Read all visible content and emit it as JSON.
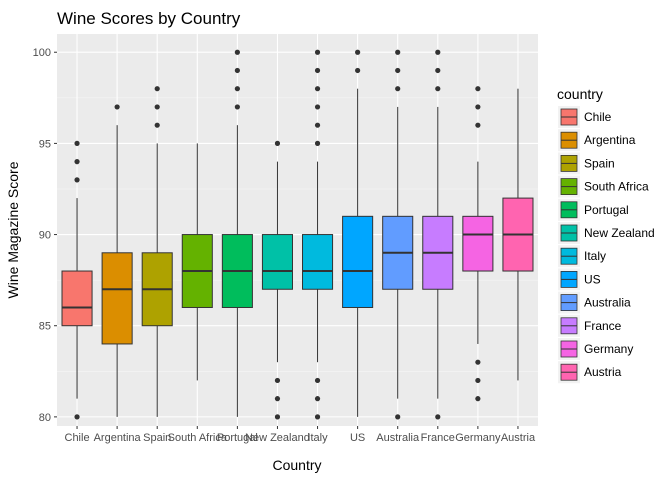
{
  "chart_data": {
    "type": "boxplot",
    "title": "Wine Scores by Country",
    "xlabel": "Country",
    "ylabel": "Wine Magazine Score",
    "ylim": [
      79.5,
      101
    ],
    "yticks": [
      80,
      85,
      90,
      95,
      100
    ],
    "grid": true,
    "legend_title": "country",
    "legend_position": "right",
    "boxes": [
      {
        "name": "Chile",
        "color": "#F8766D",
        "whisker_low": 81,
        "q1": 85,
        "median": 86,
        "q3": 88,
        "whisker_high": 92,
        "outliers": [
          80,
          93,
          94,
          95
        ]
      },
      {
        "name": "Argentina",
        "color": "#DB8E00",
        "whisker_low": 80,
        "q1": 84,
        "median": 87,
        "q3": 89,
        "whisker_high": 96,
        "outliers": [
          97
        ]
      },
      {
        "name": "Spain",
        "color": "#AEA200",
        "whisker_low": 80,
        "q1": 85,
        "median": 87,
        "q3": 89,
        "whisker_high": 95,
        "outliers": [
          96,
          97,
          98
        ]
      },
      {
        "name": "South Africa",
        "color": "#64B200",
        "whisker_low": 82,
        "q1": 86,
        "median": 88,
        "q3": 90,
        "whisker_high": 95,
        "outliers": []
      },
      {
        "name": "Portugal",
        "color": "#00BD5C",
        "whisker_low": 80,
        "q1": 86,
        "median": 88,
        "q3": 90,
        "whisker_high": 96,
        "outliers": [
          97,
          98,
          99,
          100
        ]
      },
      {
        "name": "New Zealand",
        "color": "#00C1A7",
        "whisker_low": 83,
        "q1": 87,
        "median": 88,
        "q3": 90,
        "whisker_high": 94,
        "outliers": [
          80,
          81,
          82,
          95
        ]
      },
      {
        "name": "Italy",
        "color": "#00BADE",
        "whisker_low": 83,
        "q1": 87,
        "median": 88,
        "q3": 90,
        "whisker_high": 94,
        "outliers": [
          80,
          81,
          82,
          95,
          96,
          97,
          98,
          99,
          100
        ]
      },
      {
        "name": "US",
        "color": "#00A6FF",
        "whisker_low": 80,
        "q1": 86,
        "median": 88,
        "q3": 91,
        "whisker_high": 98,
        "outliers": [
          99,
          100
        ]
      },
      {
        "name": "Australia",
        "color": "#619CFF",
        "whisker_low": 81,
        "q1": 87,
        "median": 89,
        "q3": 91,
        "whisker_high": 97,
        "outliers": [
          80,
          98,
          99,
          100
        ]
      },
      {
        "name": "France",
        "color": "#C77CFF",
        "whisker_low": 81,
        "q1": 87,
        "median": 89,
        "q3": 91,
        "whisker_high": 97,
        "outliers": [
          80,
          98,
          99,
          100
        ]
      },
      {
        "name": "Germany",
        "color": "#F564E3",
        "whisker_low": 84,
        "q1": 88,
        "median": 90,
        "q3": 91,
        "whisker_high": 94,
        "outliers": [
          81,
          82,
          83,
          96,
          97,
          98
        ]
      },
      {
        "name": "Austria",
        "color": "#FF64B0",
        "whisker_low": 82,
        "q1": 88,
        "median": 90,
        "q3": 92,
        "whisker_high": 98,
        "outliers": []
      }
    ]
  }
}
